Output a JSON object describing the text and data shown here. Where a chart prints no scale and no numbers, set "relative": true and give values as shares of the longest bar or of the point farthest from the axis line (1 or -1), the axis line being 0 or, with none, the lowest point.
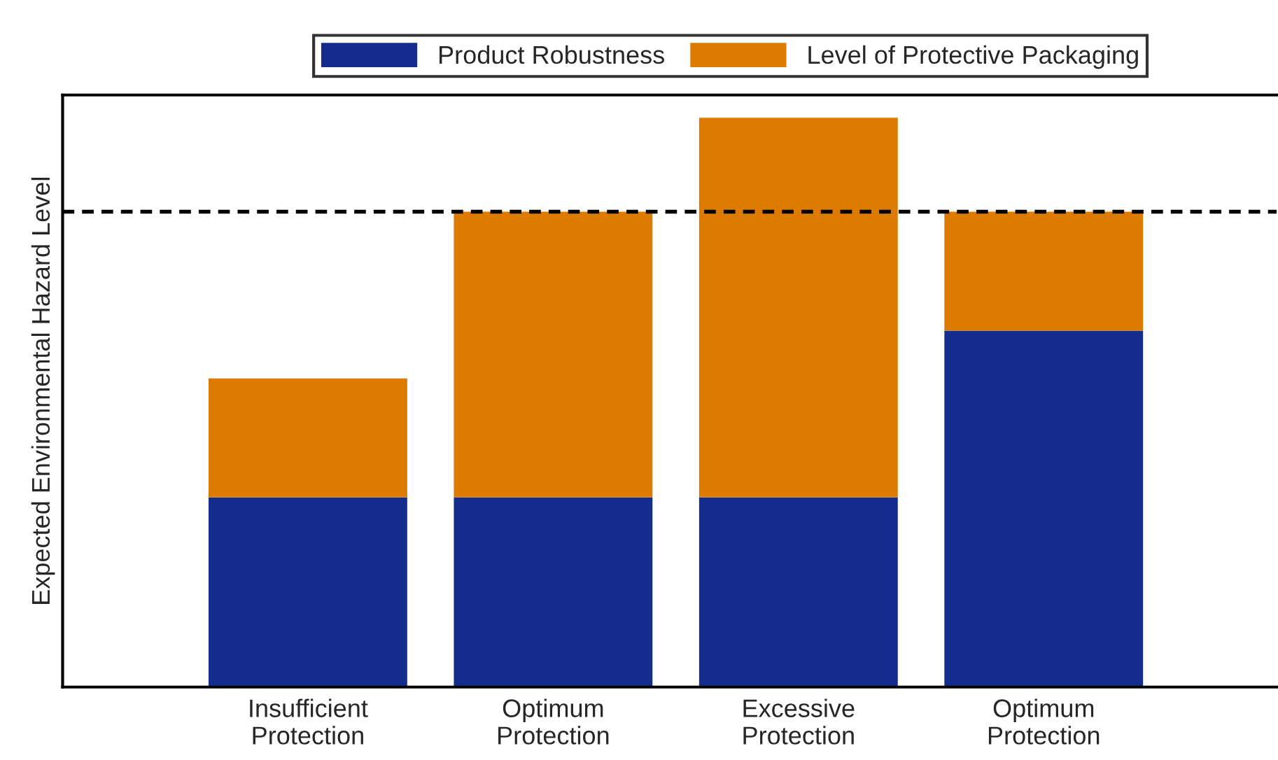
{
  "chart_data": {
    "type": "bar",
    "stacked": true,
    "relative": true,
    "ylabel": "Expected Environmental Hazard Level",
    "categories": [
      "Insufficient\nProtection",
      "Optimum\nProtection",
      "Excessive\nProtection",
      "Optimum\nProtection"
    ],
    "series": [
      {
        "name": "Product Robustness",
        "color": "#142c8c",
        "values": [
          0.333,
          0.333,
          0.333,
          0.626
        ]
      },
      {
        "name": "Level of Protective Packaging",
        "color": "#dd7a00",
        "values": [
          0.209,
          0.502,
          0.667,
          0.209
        ]
      }
    ],
    "ref_lines": [
      {
        "axis": "y",
        "value": 0.835,
        "color": "#000000",
        "line_style": "dashed"
      }
    ],
    "legend": "top",
    "grid": false
  }
}
